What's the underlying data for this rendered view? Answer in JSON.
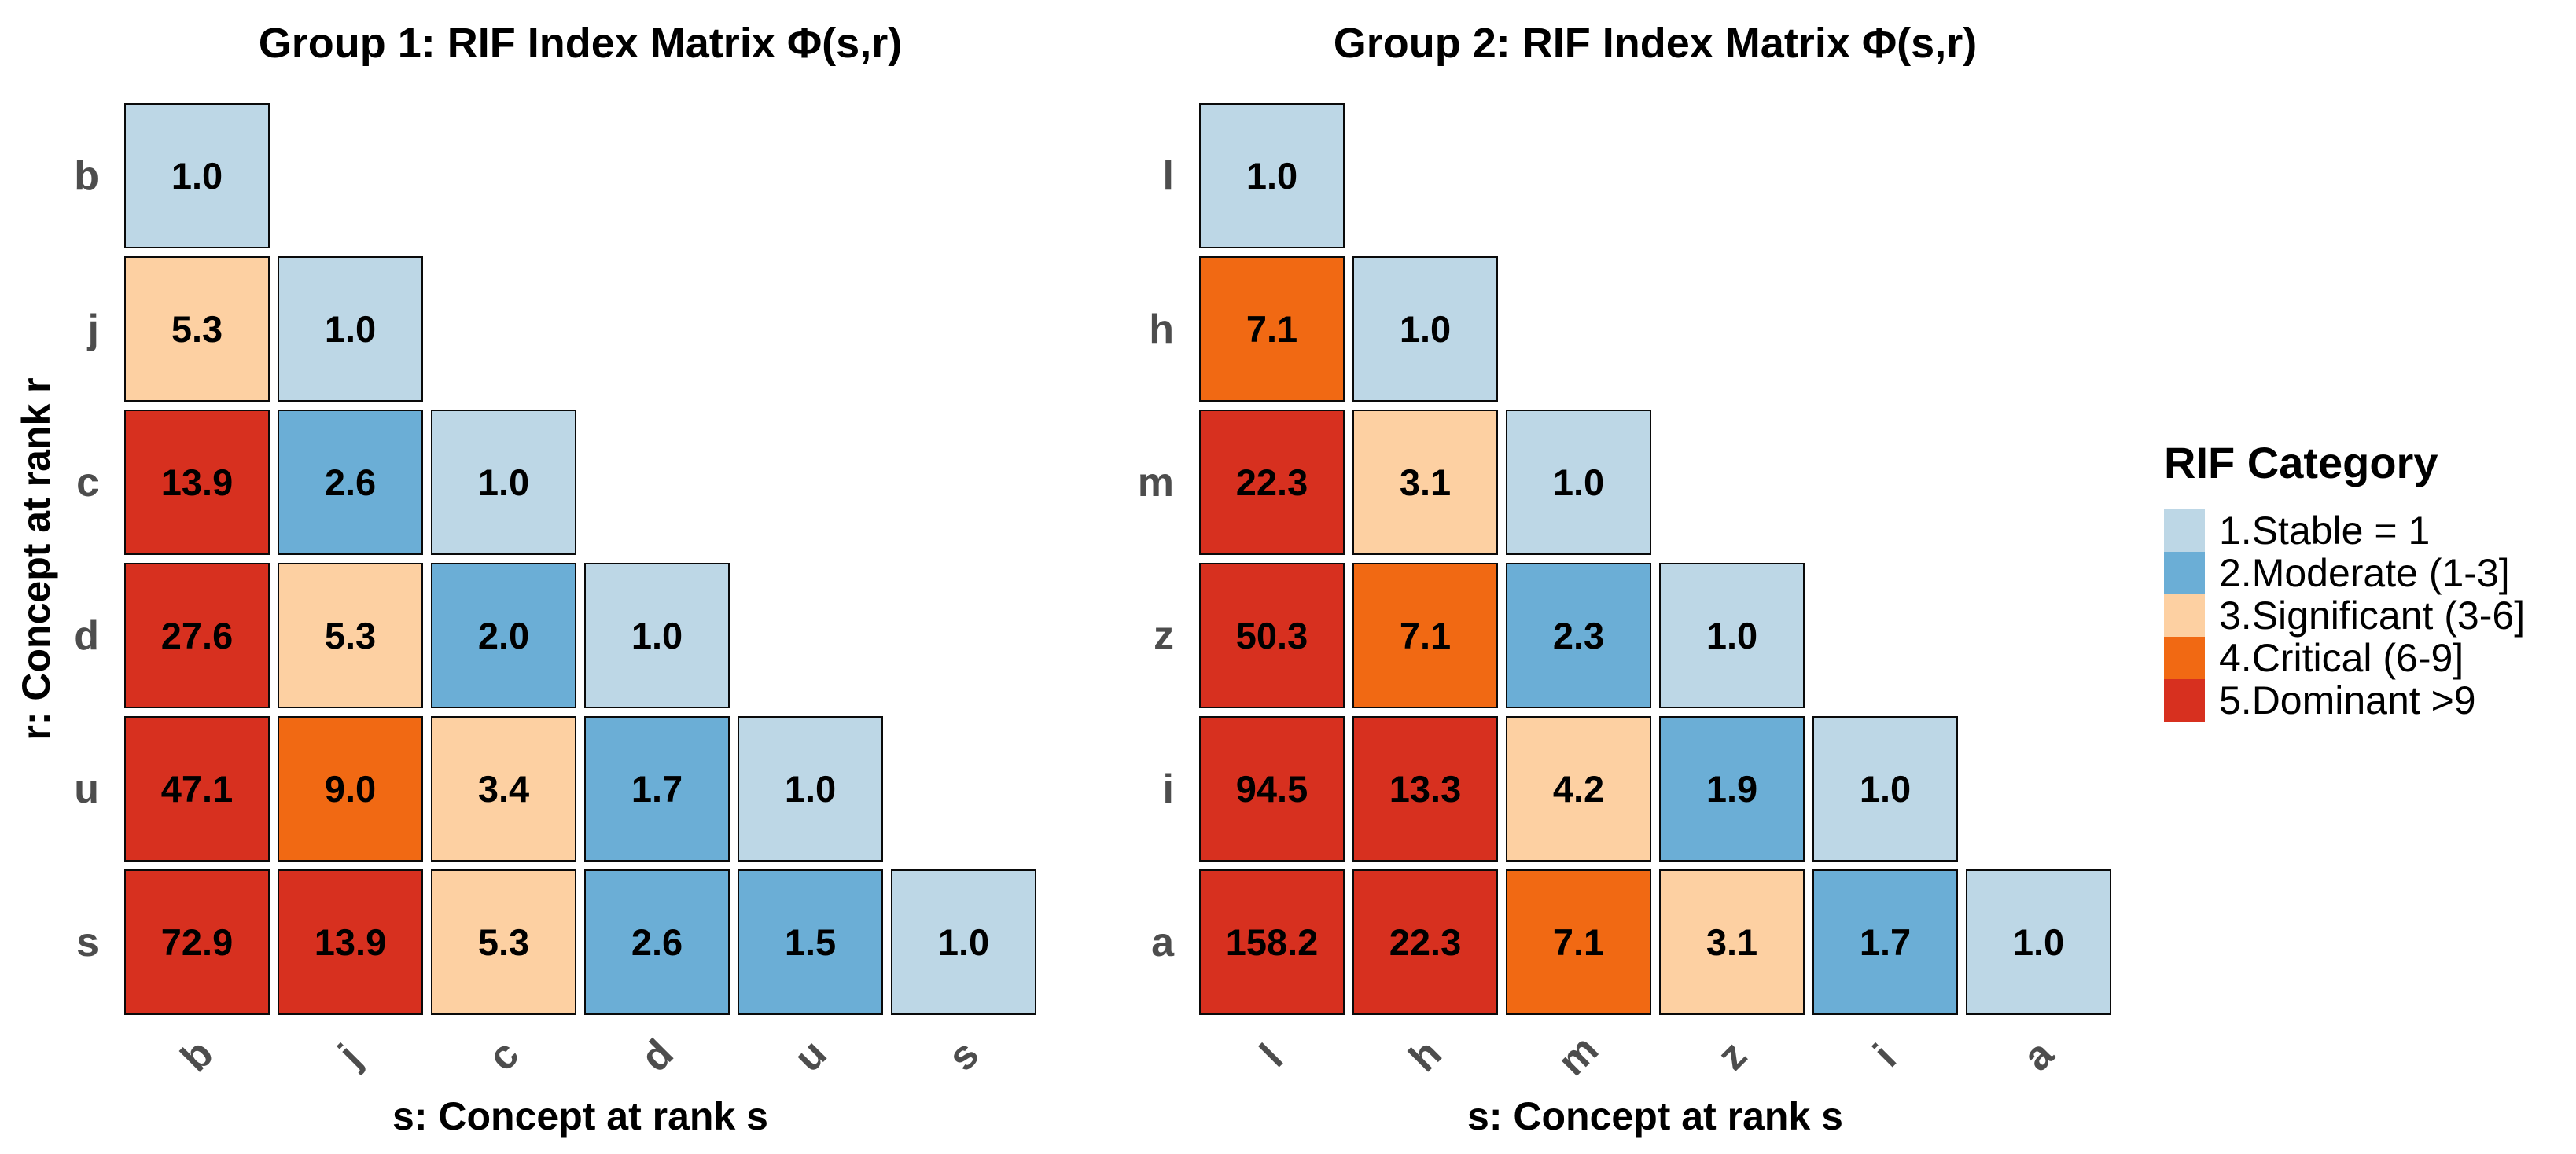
{
  "chart_data": [
    {
      "type": "heatmap",
      "shape": "lower-triangle",
      "title": "Group 1: RIF Index Matrix Φ(s,r)",
      "xlabel": "s: Concept at rank s",
      "ylabel": "r: Concept at rank r",
      "x_categories": [
        "b",
        "j",
        "c",
        "d",
        "u",
        "s"
      ],
      "y_categories": [
        "b",
        "j",
        "c",
        "d",
        "u",
        "s"
      ],
      "values": [
        [
          1.0
        ],
        [
          5.3,
          1.0
        ],
        [
          13.9,
          2.6,
          1.0
        ],
        [
          27.6,
          5.3,
          2.0,
          1.0
        ],
        [
          47.1,
          9.0,
          3.4,
          1.7,
          1.0
        ],
        [
          72.9,
          13.9,
          5.3,
          2.6,
          1.5,
          1.0
        ]
      ],
      "value_format": "0.1f",
      "grid": false,
      "legend_position": "right"
    },
    {
      "type": "heatmap",
      "shape": "lower-triangle",
      "title": "Group 2: RIF Index Matrix Φ(s,r)",
      "xlabel": "s: Concept at rank s",
      "ylabel": "",
      "x_categories": [
        "l",
        "h",
        "m",
        "z",
        "i",
        "a"
      ],
      "y_categories": [
        "l",
        "h",
        "m",
        "z",
        "i",
        "a"
      ],
      "values": [
        [
          1.0
        ],
        [
          7.1,
          1.0
        ],
        [
          22.3,
          3.1,
          1.0
        ],
        [
          50.3,
          7.1,
          2.3,
          1.0
        ],
        [
          94.5,
          13.3,
          4.2,
          1.9,
          1.0
        ],
        [
          158.2,
          22.3,
          7.1,
          3.1,
          1.7,
          1.0
        ]
      ],
      "value_format": "0.1f",
      "grid": false,
      "legend_position": "right"
    }
  ],
  "legend": {
    "title": "RIF Category",
    "items": [
      {
        "label": "1.Stable = 1",
        "range": "= 1",
        "color": "#BDD7E6"
      },
      {
        "label": "2.Moderate (1-3]",
        "range": "(1-3]",
        "color": "#6BAED6"
      },
      {
        "label": "3.Significant (3-6]",
        "range": "(3-6]",
        "color": "#FDD0A2"
      },
      {
        "label": "4.Critical (6-9]",
        "range": "(6-9]",
        "color": "#F16913"
      },
      {
        "label": "5.Dominant >9",
        "range": ">9",
        "color": "#D7301F"
      }
    ]
  },
  "styles": {
    "background": "#FFFFFF",
    "cell_border": "#0A0A0A",
    "tick_label_color": "#4D4D4D",
    "text_color": "#000000"
  }
}
